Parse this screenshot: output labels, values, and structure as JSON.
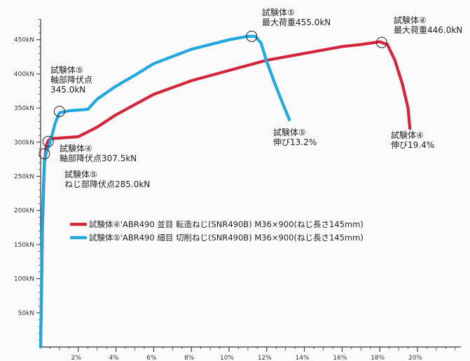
{
  "chart_data": {
    "type": "line",
    "title": "",
    "xlabel": "",
    "ylabel": "",
    "xlim": [
      0,
      22
    ],
    "ylim": [
      0,
      480
    ],
    "x_ticks": [
      2,
      4,
      6,
      8,
      10,
      12,
      14,
      16,
      18,
      20
    ],
    "x_tick_labels": [
      "2%",
      "4%",
      "6%",
      "8%",
      "10%",
      "12%",
      "14%",
      "16%",
      "18%",
      "20%"
    ],
    "y_ticks": [
      50,
      100,
      150,
      200,
      250,
      300,
      350,
      400,
      450
    ],
    "y_tick_labels": [
      "50kN",
      "100kN",
      "150kN",
      "200kN",
      "250kN",
      "300kN",
      "350kN",
      "400kN",
      "450kN"
    ],
    "grid": false,
    "legend_position": "center",
    "series": [
      {
        "name": "試験体④ ABR490 並目 転造ねじ(SNR490B) M36×900(ねじ長さ145mm)",
        "color": "#d3263a",
        "x": [
          0.0,
          0.1,
          0.2,
          0.3,
          0.4,
          0.5,
          1.0,
          2.0,
          3.0,
          4.0,
          5.0,
          6.0,
          8.0,
          10.0,
          12.0,
          14.0,
          16.0,
          17.0,
          18.0,
          18.4,
          18.8,
          19.2,
          19.5,
          19.6
        ],
        "y": [
          0,
          180,
          270,
          295,
          302,
          305,
          306,
          308,
          322,
          340,
          355,
          370,
          390,
          405,
          420,
          430,
          440,
          443,
          447,
          443,
          420,
          385,
          350,
          320
        ]
      },
      {
        "name": "試験体⑤ ABR490 細目 切削ねじ(SNR490B) M36×900(ねじ長さ145mm)",
        "color": "#22a8e0",
        "x": [
          0.0,
          0.1,
          0.2,
          0.3,
          0.5,
          0.8,
          1.0,
          1.5,
          2.5,
          3.0,
          4.0,
          5.0,
          6.0,
          8.0,
          10.0,
          11.0,
          11.4,
          11.7,
          12.0,
          12.4,
          12.8,
          13.2
        ],
        "y": [
          0,
          200,
          270,
          285,
          300,
          330,
          343,
          346,
          348,
          363,
          382,
          398,
          415,
          436,
          450,
          455,
          455,
          445,
          418,
          388,
          360,
          333
        ]
      }
    ],
    "legend_entries": [
      "試験体④'ABR490 並目 転造ねじ(SNR490B) M36×900(ねじ長さ145mm)",
      "試験体⑤'ABR490 細目 切削ねじ(SNR490B) M36×900(ねじ長さ145mm)"
    ],
    "annotations": [
      {
        "lines": [
          "試験体⑤",
          "最大荷重455.0kN"
        ],
        "point": [
          11.2,
          455
        ]
      },
      {
        "lines": [
          "試験体④",
          "最大荷重446.0kN"
        ],
        "point": [
          18.1,
          446
        ]
      },
      {
        "lines": [
          "試験体⑤",
          "軸部降伏点",
          "345.0kN"
        ],
        "point": [
          1.0,
          345
        ]
      },
      {
        "lines": [
          "試験体④",
          "軸部降伏点307.5kN"
        ],
        "point": [
          0.4,
          301
        ]
      },
      {
        "lines": [
          "試験体⑤",
          "ねじ部降伏点285.0kN"
        ],
        "point": [
          0.2,
          283
        ]
      },
      {
        "lines": [
          "試験体⑤",
          "伸び13.2%"
        ],
        "point": null
      },
      {
        "lines": [
          "試験体④",
          "伸び19.4%"
        ],
        "point": null
      }
    ]
  }
}
